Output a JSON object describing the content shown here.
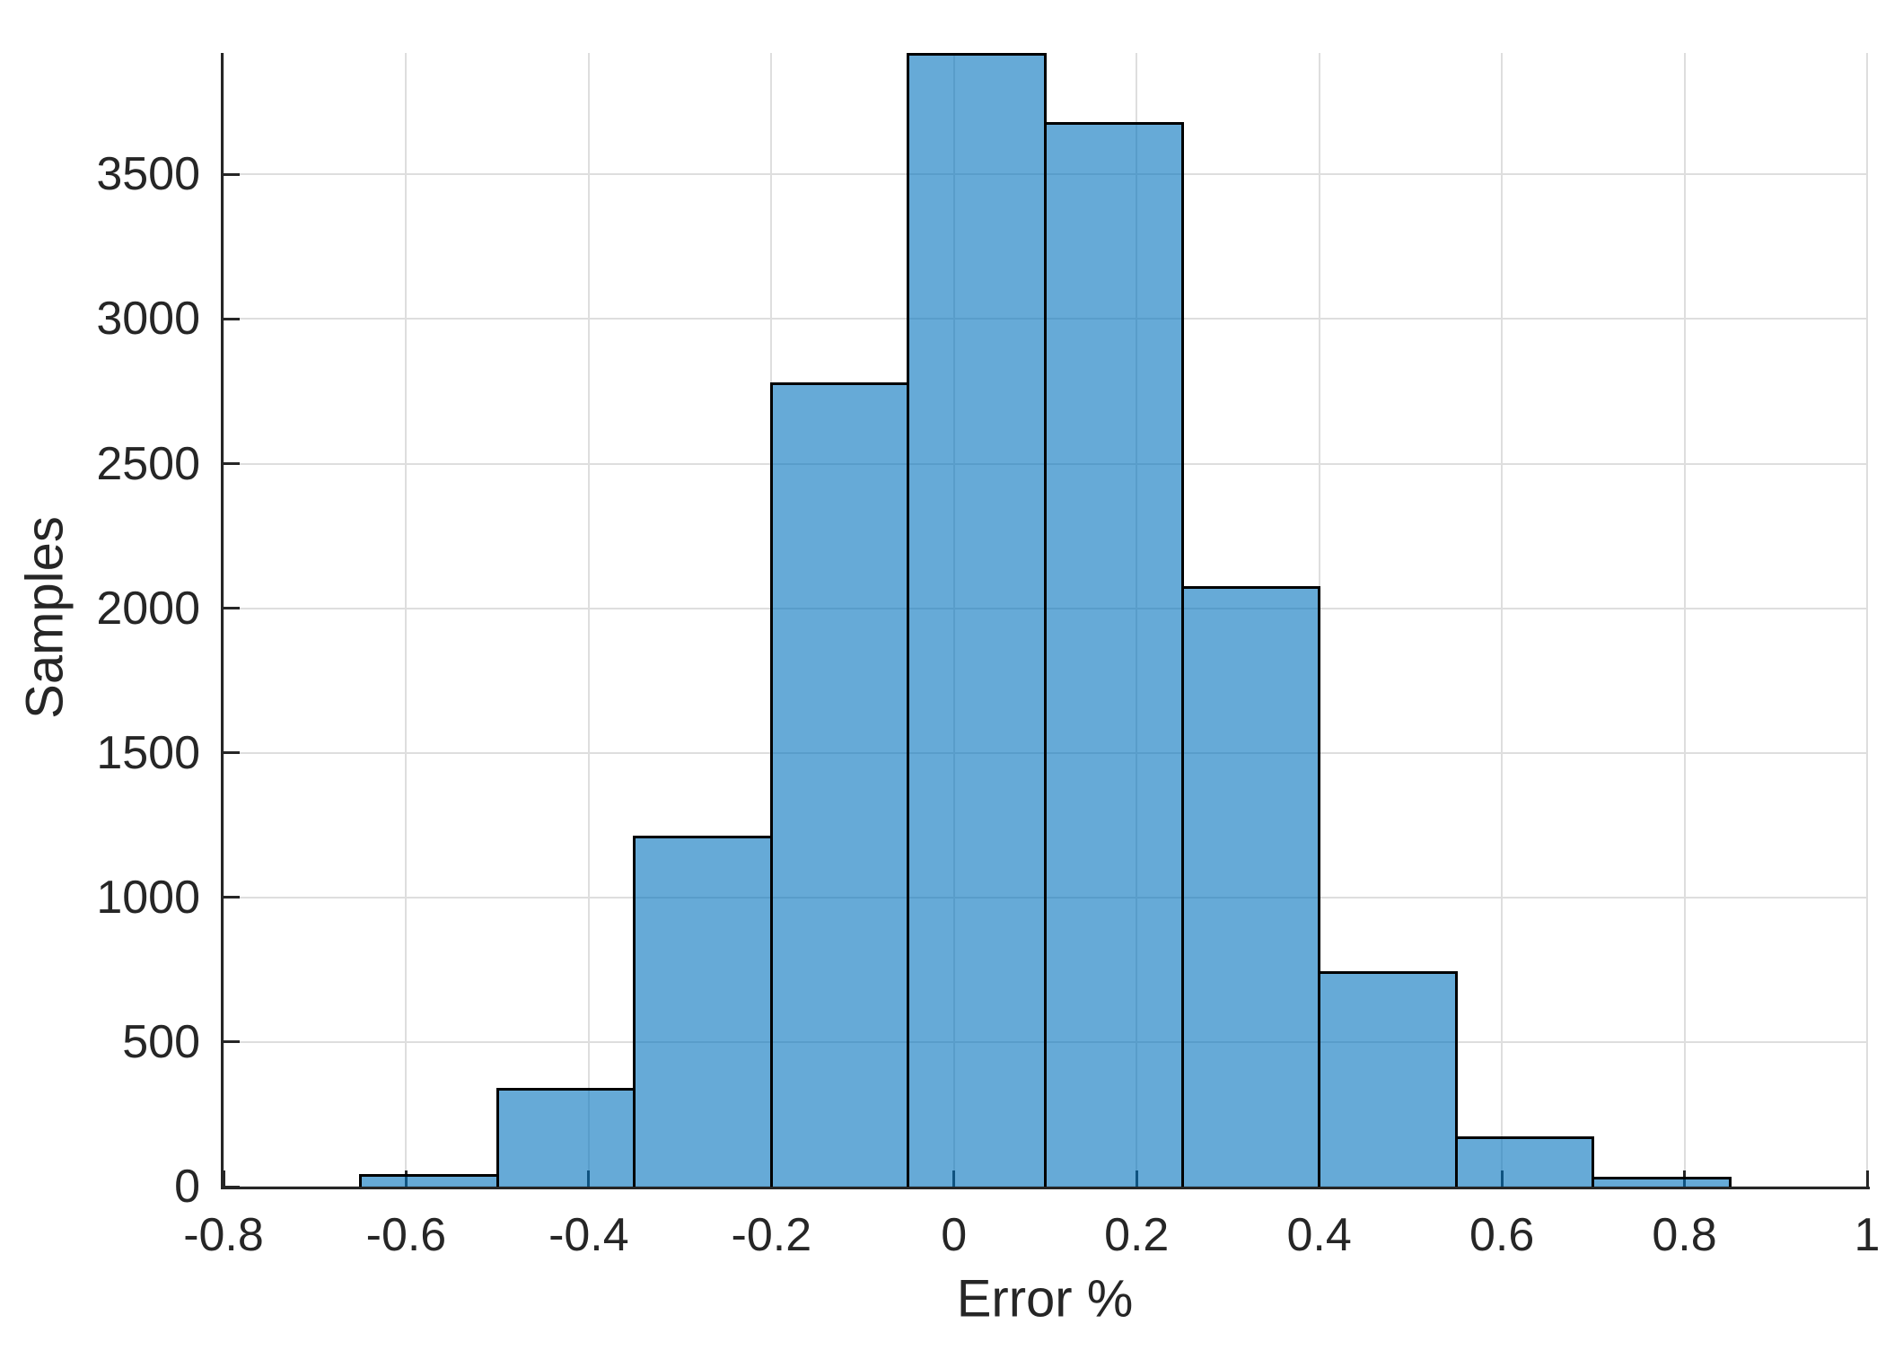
{
  "chart_data": {
    "type": "bar",
    "subtype": "histogram",
    "title": "",
    "xlabel": "Error %",
    "ylabel": "Samples",
    "bin_edges": [
      -0.65,
      -0.5,
      -0.35,
      -0.2,
      -0.05,
      0.1,
      0.25,
      0.4,
      0.55,
      0.7,
      0.85
    ],
    "counts": [
      45,
      340,
      1215,
      2780,
      3920,
      3680,
      2075,
      745,
      175,
      35
    ],
    "xlim": [
      -0.8,
      1.0
    ],
    "ylim": [
      0,
      3920
    ],
    "x_ticks": [
      -0.8,
      -0.6,
      -0.4,
      -0.2,
      0,
      0.2,
      0.4,
      0.6,
      0.8,
      1
    ],
    "x_tick_labels": [
      "-0.8",
      "-0.6",
      "-0.4",
      "-0.2",
      "0",
      "0.2",
      "0.4",
      "0.6",
      "0.8",
      "1"
    ],
    "y_ticks": [
      0,
      500,
      1000,
      1500,
      2000,
      2500,
      3000,
      3500
    ],
    "y_tick_labels": [
      "0",
      "500",
      "1000",
      "1500",
      "2000",
      "2500",
      "3000",
      "3500"
    ],
    "grid": true,
    "legend": null,
    "colors": {
      "bar_fill_rgba": "rgba(0,114,189,0.6)",
      "bar_fill_hex_on_white": "#66aad7",
      "bar_edge": "#000000",
      "grid_color": "#dedede",
      "axis_color": "#262626",
      "background": "#ffffff"
    }
  }
}
